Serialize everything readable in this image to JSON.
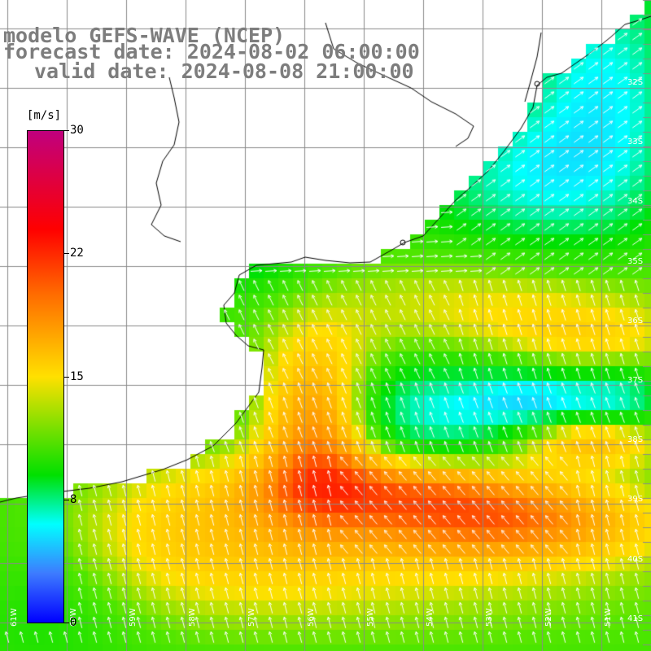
{
  "title": {
    "line1": "modelo GEFS-WAVE (NCEP)",
    "line2": "forecast date: 2024-08-02 06:00:00",
    "line3": "valid date: 2024-08-08 21:00:00"
  },
  "colorbar": {
    "unit": "m/s",
    "ticks": [
      "30",
      "22",
      "15",
      "8",
      "0"
    ],
    "tick_values": [
      30,
      22,
      15,
      8,
      0
    ]
  },
  "lat_labels": [
    "32S",
    "33S",
    "34S",
    "35S",
    "36S",
    "37S",
    "38S",
    "39S",
    "40S",
    "41S"
  ],
  "lon_labels": [
    "61W",
    "60W",
    "59W",
    "58W",
    "57W",
    "56W",
    "55W",
    "54W",
    "53W",
    "52W",
    "51W"
  ],
  "colors": {
    "land": "#ffffff",
    "grid": "#8a8a8a",
    "coast": "#000000",
    "arrows": "#ffffff",
    "title_gray": "#7d7d7d"
  }
}
